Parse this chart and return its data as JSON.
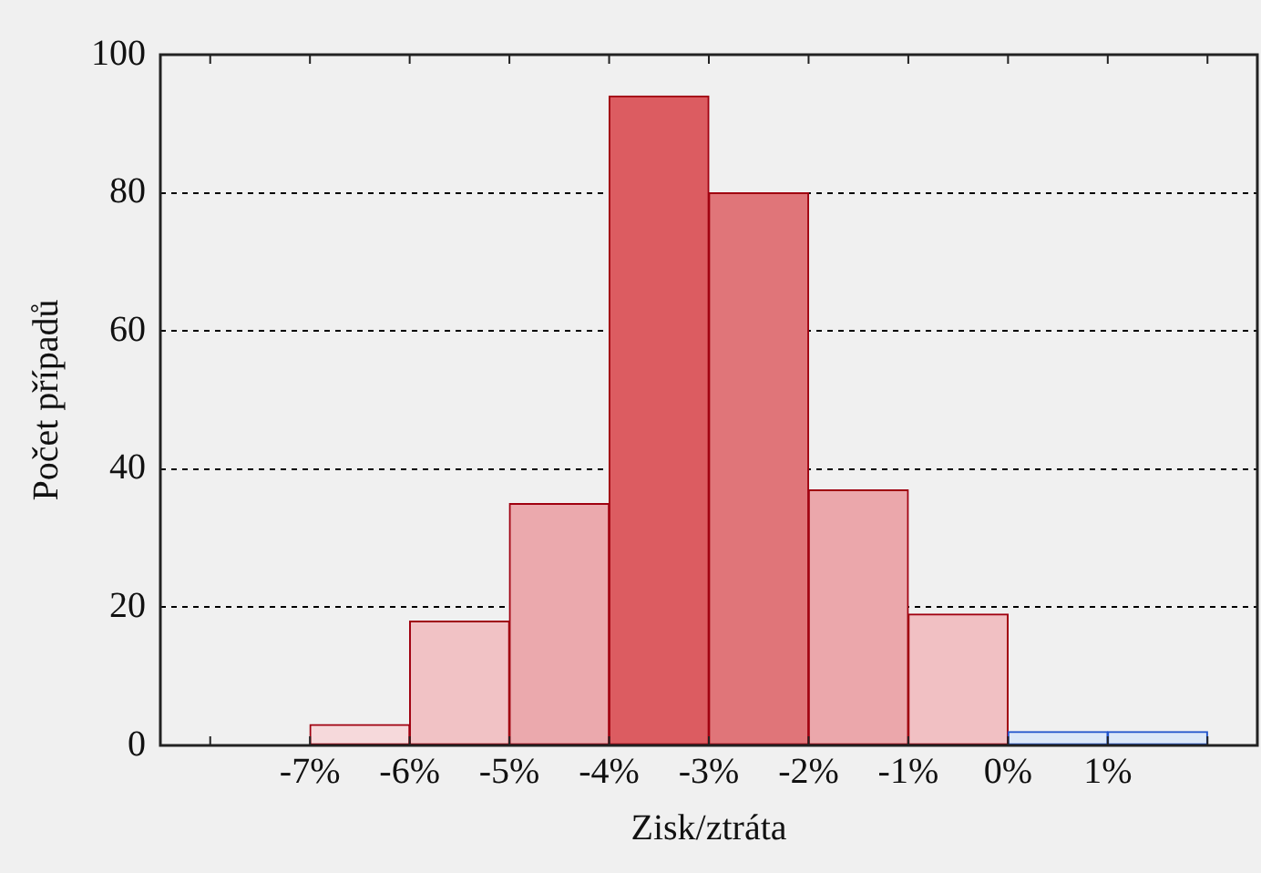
{
  "chart_data": {
    "type": "histogram",
    "xlabel": "Zisk/ztráta",
    "ylabel": "Počet případů",
    "bins": [
      -7,
      -6,
      -5,
      -4,
      -3,
      -2,
      -1,
      0,
      1,
      2
    ],
    "values": [
      3,
      18,
      35,
      94,
      80,
      37,
      19,
      2,
      2
    ],
    "colors": [
      "#f6d9db",
      "#f1c2c5",
      "#eba9ad",
      "#dc5c61",
      "#e07579",
      "#eba7ab",
      "#f1c0c3",
      "#dce8f8",
      "#dce8f8"
    ],
    "xlim": [
      -8.5,
      2.5
    ],
    "xticks": [
      {
        "value": -8,
        "label": null
      },
      {
        "value": -7,
        "label": "-7%"
      },
      {
        "value": -6,
        "label": "-6%"
      },
      {
        "value": -5,
        "label": "-5%"
      },
      {
        "value": -4,
        "label": "-4%"
      },
      {
        "value": -3,
        "label": "-3%"
      },
      {
        "value": -2,
        "label": "-2%"
      },
      {
        "value": -1,
        "label": "-1%"
      },
      {
        "value": 0,
        "label": "0%"
      },
      {
        "value": 1,
        "label": "1%"
      },
      {
        "value": 2,
        "label": null
      }
    ],
    "ylim": [
      0,
      100
    ],
    "yticks": [
      0,
      20,
      40,
      60,
      80,
      100
    ],
    "grid": "y",
    "legend": false
  }
}
